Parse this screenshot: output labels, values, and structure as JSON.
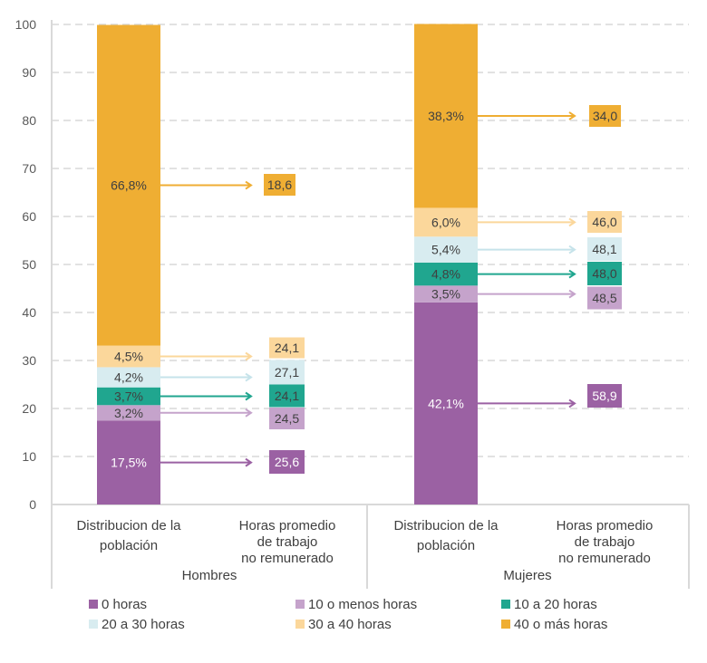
{
  "chart_data": {
    "type": "bar",
    "stacked": true,
    "ylim": [
      0,
      100
    ],
    "yticks": [
      0,
      10,
      20,
      30,
      40,
      50,
      60,
      70,
      80,
      90,
      100
    ],
    "grid": true,
    "legend_position": "bottom",
    "groups": [
      {
        "name": "Hombres",
        "categories": [
          "Distribucion de la población",
          "Horas promedio de trabajo no remunerado"
        ],
        "distribution": [
          17.5,
          3.2,
          3.7,
          4.2,
          4.5,
          66.8
        ],
        "distribution_labels": [
          "17,5%",
          "3,2%",
          "3,7%",
          "4,2%",
          "4,5%",
          "66,8%"
        ],
        "hours": [
          "25,6",
          "24,5",
          "24,1",
          "27,1",
          "24,1",
          "18,6"
        ]
      },
      {
        "name": "Mujeres",
        "categories": [
          "Distribucion de la población",
          "Horas promedio de trabajo no remunerado"
        ],
        "distribution": [
          42.1,
          3.5,
          4.8,
          5.4,
          6.0,
          38.3
        ],
        "distribution_labels": [
          "42,1%",
          "3,5%",
          "4,8%",
          "5,4%",
          "6,0%",
          "38,3%"
        ],
        "hours": [
          "58,9",
          "48,5",
          "48,0",
          "48,1",
          "46,0",
          "34,0"
        ]
      }
    ],
    "series": [
      {
        "name": "0 horas",
        "color": "#9b61a3"
      },
      {
        "name": "10 o menos horas",
        "color": "#c5a3cb"
      },
      {
        "name": "10 a 20 horas",
        "color": "#20a68f"
      },
      {
        "name": "20 a 30 horas",
        "color": "#d8ecf0"
      },
      {
        "name": "30 a 40 horas",
        "color": "#fbd79b"
      },
      {
        "name": "40 o más horas",
        "color": "#efae33"
      }
    ]
  }
}
